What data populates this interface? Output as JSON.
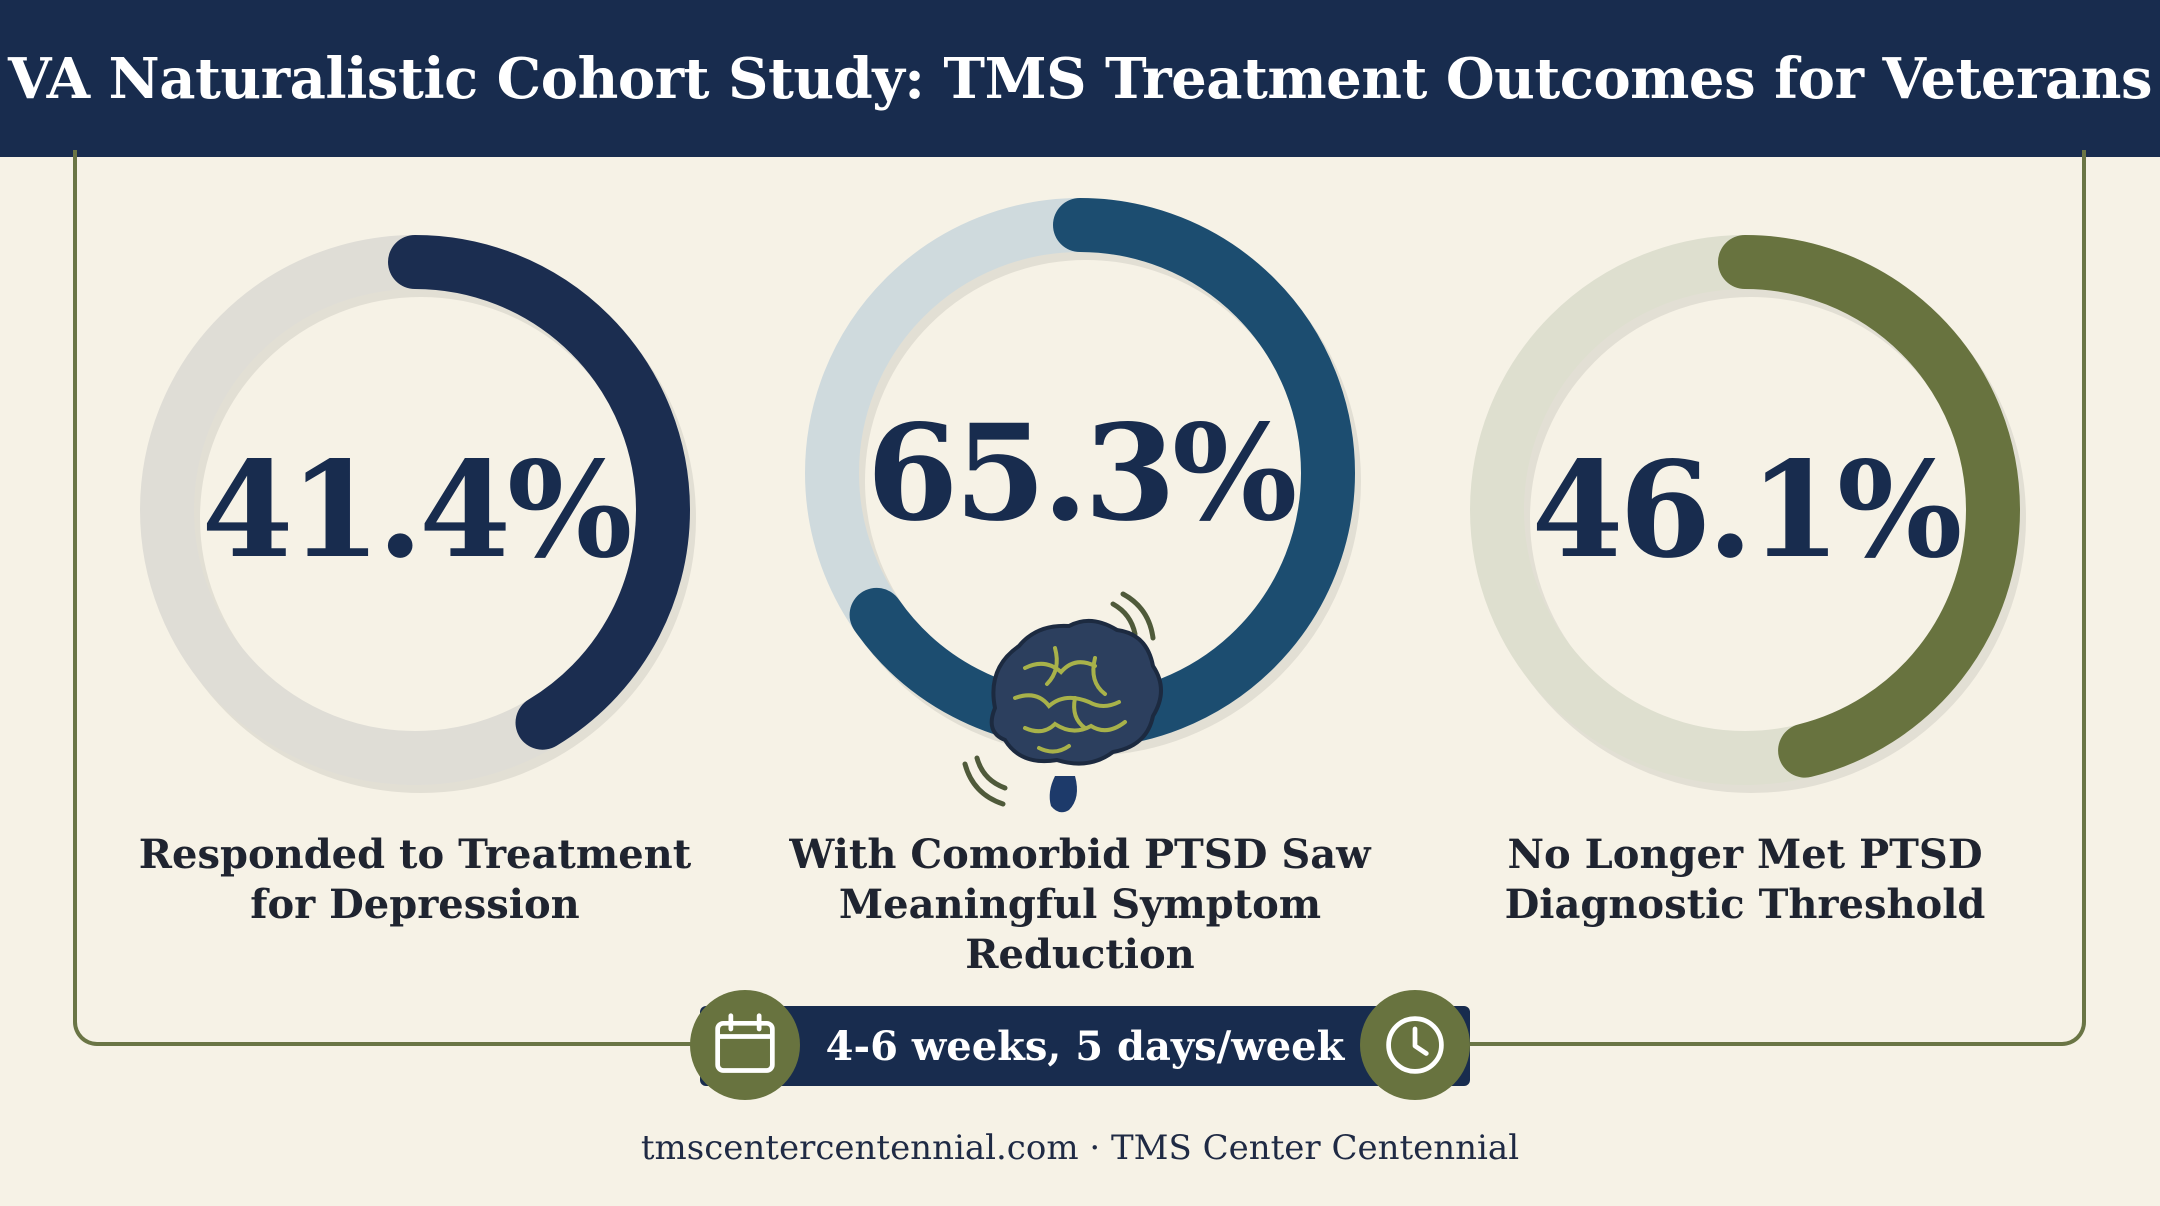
{
  "title": "VA Naturalistic Cohort Study: TMS Treatment Outcomes for Veterans",
  "stats": [
    {
      "value": "41.4%",
      "percent": 41.4,
      "label_line1": "Responded to Treatment",
      "label_line2": "for Depression",
      "ring_color": "#1b2d50",
      "track_color": "#dfddd6"
    },
    {
      "value": "65.3%",
      "percent": 65.3,
      "label_line1": "With Comorbid PTSD Saw",
      "label_line2": "Meaningful Symptom Reduction",
      "ring_color": "#1c4d70",
      "track_color": "#cfdadd"
    },
    {
      "value": "46.1%",
      "percent": 46.1,
      "label_line1": "No Longer Met PTSD",
      "label_line2": "Diagnostic Threshold",
      "ring_color": "#68733f",
      "track_color": "#dedfcf"
    }
  ],
  "icons": {
    "center": "brain-icon",
    "left_badge": "calendar-icon",
    "right_badge": "clock-icon"
  },
  "schedule": "4-6 weeks, 5 days/week",
  "footer": "tmscentercentennial.com · TMS Center Centennial"
}
